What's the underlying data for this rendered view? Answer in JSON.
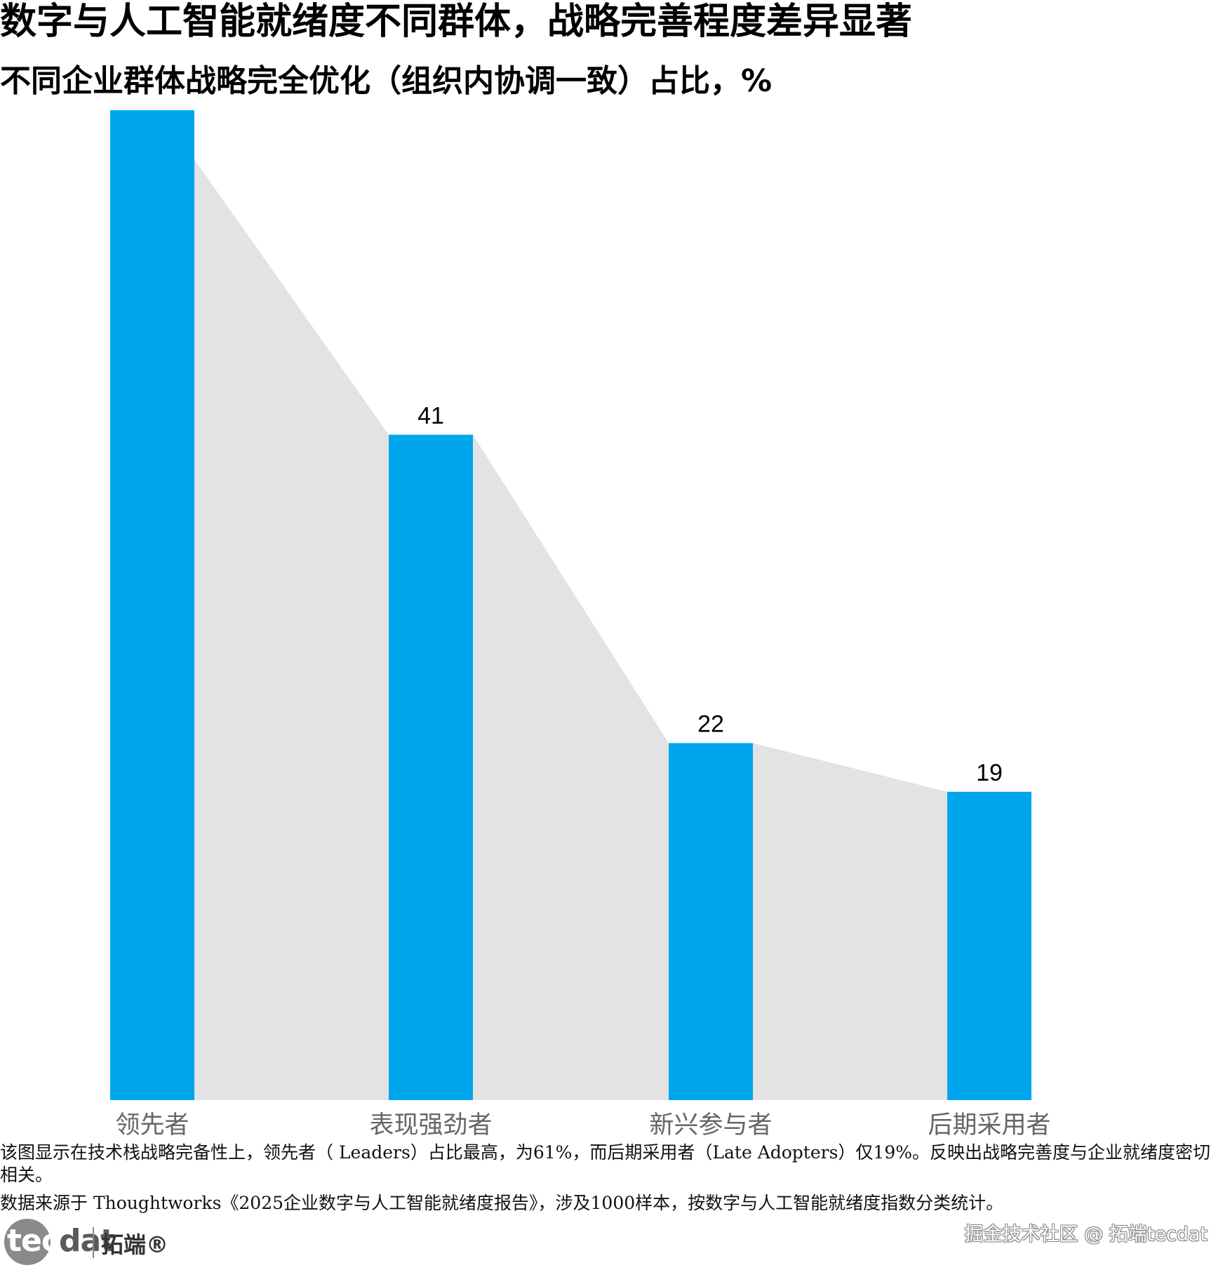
{
  "title": "数字与人工智能就绪度不同群体，战略完善程度差异显著",
  "subtitle": "不同企业群体战略完全优化（组织内协调一致）占比，%",
  "chart_data": {
    "type": "bar",
    "categories": [
      "领先者",
      "表现强劲者",
      "新兴参与者",
      "后期采用者"
    ],
    "values": [
      61,
      41,
      22,
      19
    ],
    "data_labels": [
      "",
      "41",
      "22",
      "19"
    ],
    "title": "数字与人工智能就绪度不同群体，战略完善程度差异显著",
    "subtitle": "不同企业群体战略完全优化（组织内协调一致）占比，%",
    "ylim": [
      0,
      61
    ],
    "grid": false,
    "bar_color": "#00A6ED",
    "area_color": "#E3E3E3",
    "label_color": "#000000",
    "category_label_color": "#666666"
  },
  "notes": {
    "description": "该图显示在技术栈战略完备性上，领先者（  Leaders）占比最高，为61%，而后期采用者（Late Adopters）仅19%。反映出战略完善度与企业就绪度密切相关。",
    "source": "数据来源于  Thoughtworks《2025企业数字与人工智能就绪度报告》，涉及1000样本，按数字与人工智能就绪度指数分类统计。"
  },
  "logo": {
    "tec": "tec",
    "dat": "dat",
    "cn": "拓端®"
  },
  "watermark": "掘金技术社区 @ 拓端tecdat"
}
